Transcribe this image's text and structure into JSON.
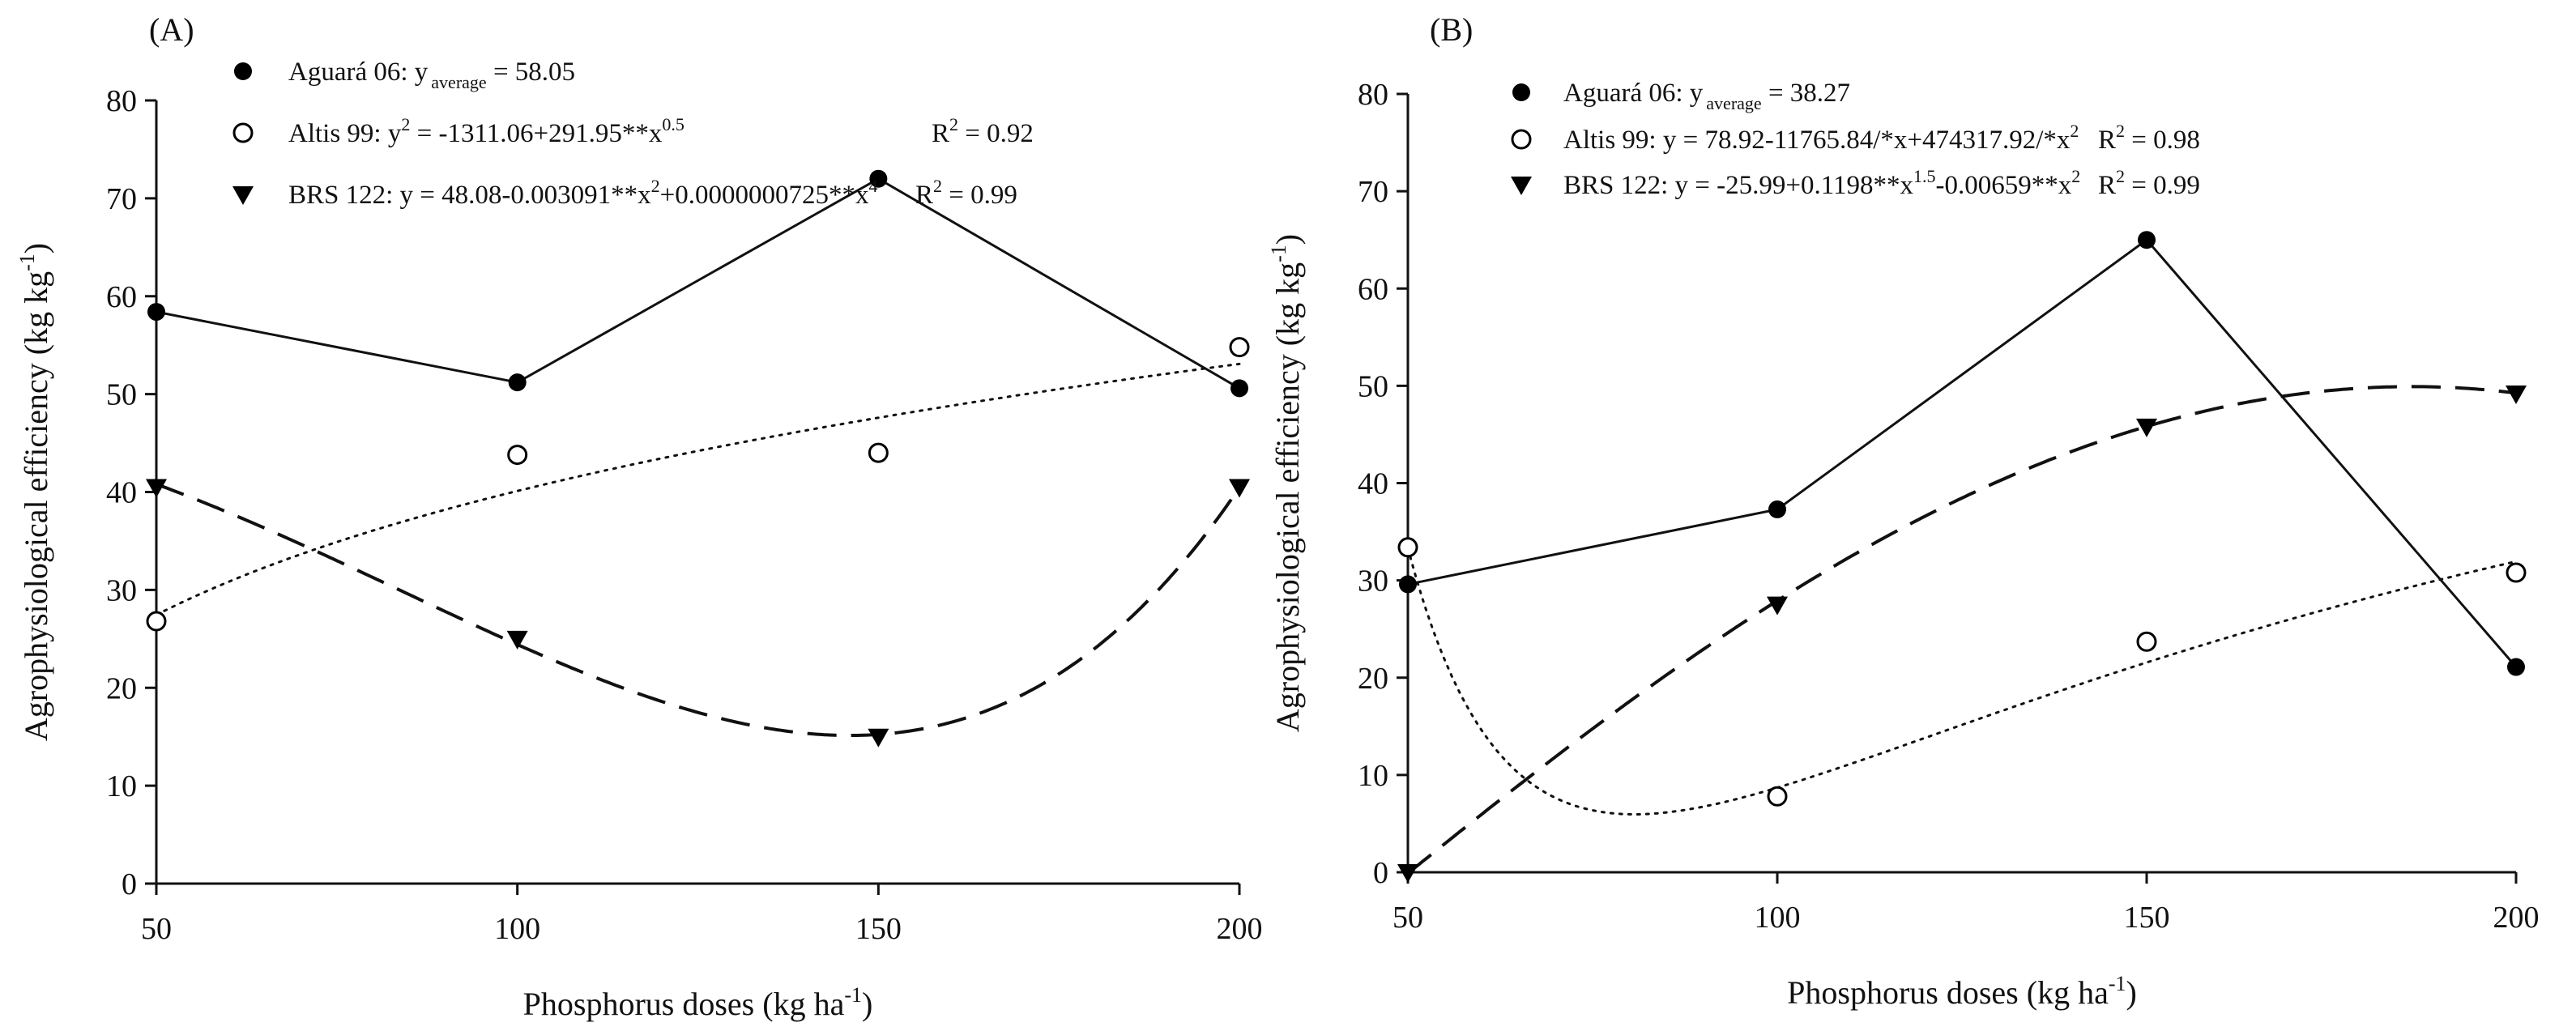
{
  "chart_data": [
    {
      "panel_label": "(A)",
      "type": "scatter",
      "xlabel": "Phosphorus doses (kg ha",
      "xlabel_sup": "-1",
      "xlabel_close": ")",
      "ylabel": "Agrophysiological efficiency (kg kg",
      "ylabel_sup": "-1",
      "ylabel_close": ")",
      "xlim": [
        50,
        200
      ],
      "ylim": [
        0,
        80
      ],
      "xticks": [
        50,
        100,
        150,
        200
      ],
      "yticks": [
        0,
        10,
        20,
        30,
        40,
        50,
        60,
        70,
        80
      ],
      "legend": [
        {
          "name": "Aguará 06",
          "a": "Aguará 06: y",
          "sub": "average",
          "b": " = 58.05"
        },
        {
          "name": "Altis 99",
          "a": "Altis 99: y",
          "sup1": "2",
          "b": " = -1311.06+291.95**x",
          "sup2": "0.5",
          "c": "R",
          "sup3": "2",
          "d": " = 0.92"
        },
        {
          "name": "BRS 122",
          "a": "BRS 122: y = 48.08-0.003091**x",
          "sup1": "2",
          "b": "+0.0000000725**x",
          "sup2": "4",
          "c": "R",
          "sup3": "2",
          "d": " = 0.99"
        }
      ],
      "series": [
        {
          "name": "Aguará 06",
          "marker": "filled-circle",
          "x": [
            50,
            100,
            150,
            200
          ],
          "y": [
            58.4,
            51.2,
            72.0,
            50.6
          ]
        },
        {
          "name": "Altis 99",
          "marker": "open-circle",
          "x": [
            50,
            100,
            150,
            200
          ],
          "y": [
            26.8,
            43.8,
            44.0,
            54.8
          ]
        },
        {
          "name": "BRS 122",
          "marker": "filled-triangle-down",
          "x": [
            50,
            100,
            150,
            200
          ],
          "y": [
            40.5,
            25.0,
            15.0,
            40.5
          ]
        }
      ]
    },
    {
      "panel_label": "(B)",
      "type": "scatter",
      "xlabel": "Phosphorus doses (kg ha",
      "xlabel_sup": "-1",
      "xlabel_close": ")",
      "ylabel": "Agrophysiological efficiency (kg kg",
      "ylabel_sup": "-1",
      "ylabel_close": ")",
      "xlim": [
        50,
        200
      ],
      "ylim": [
        0,
        80
      ],
      "xticks": [
        50,
        100,
        150,
        200
      ],
      "yticks": [
        0,
        10,
        20,
        30,
        40,
        50,
        60,
        70,
        80
      ],
      "legend": [
        {
          "name": "Aguará 06",
          "a": "Aguará 06: y",
          "sub": "average",
          "b": " = 38.27"
        },
        {
          "name": "Altis 99",
          "a": "Altis 99: y = 78.92-11765.84/*x+474317.92/*x",
          "sup1": "2",
          "c": "R",
          "sup3": "2",
          "d": " = 0.98"
        },
        {
          "name": "BRS 122",
          "a": "BRS 122: y = -25.99+0.1198**x",
          "sup1": "1.5",
          "b": "-0.00659**x",
          "sup2": "2",
          "c": "R",
          "sup3": "2",
          "d": " = 0.99"
        }
      ],
      "series": [
        {
          "name": "Aguará 06",
          "marker": "filled-circle",
          "x": [
            50,
            100,
            150,
            200
          ],
          "y": [
            29.6,
            37.3,
            65.0,
            21.1
          ]
        },
        {
          "name": "Altis 99",
          "marker": "open-circle",
          "x": [
            50,
            100,
            150,
            200
          ],
          "y": [
            33.4,
            7.8,
            23.7,
            30.8
          ]
        },
        {
          "name": "BRS 122",
          "marker": "filled-triangle-down",
          "x": [
            50,
            100,
            150,
            200
          ],
          "y": [
            0.0,
            27.5,
            45.8,
            49.2
          ]
        }
      ]
    }
  ]
}
